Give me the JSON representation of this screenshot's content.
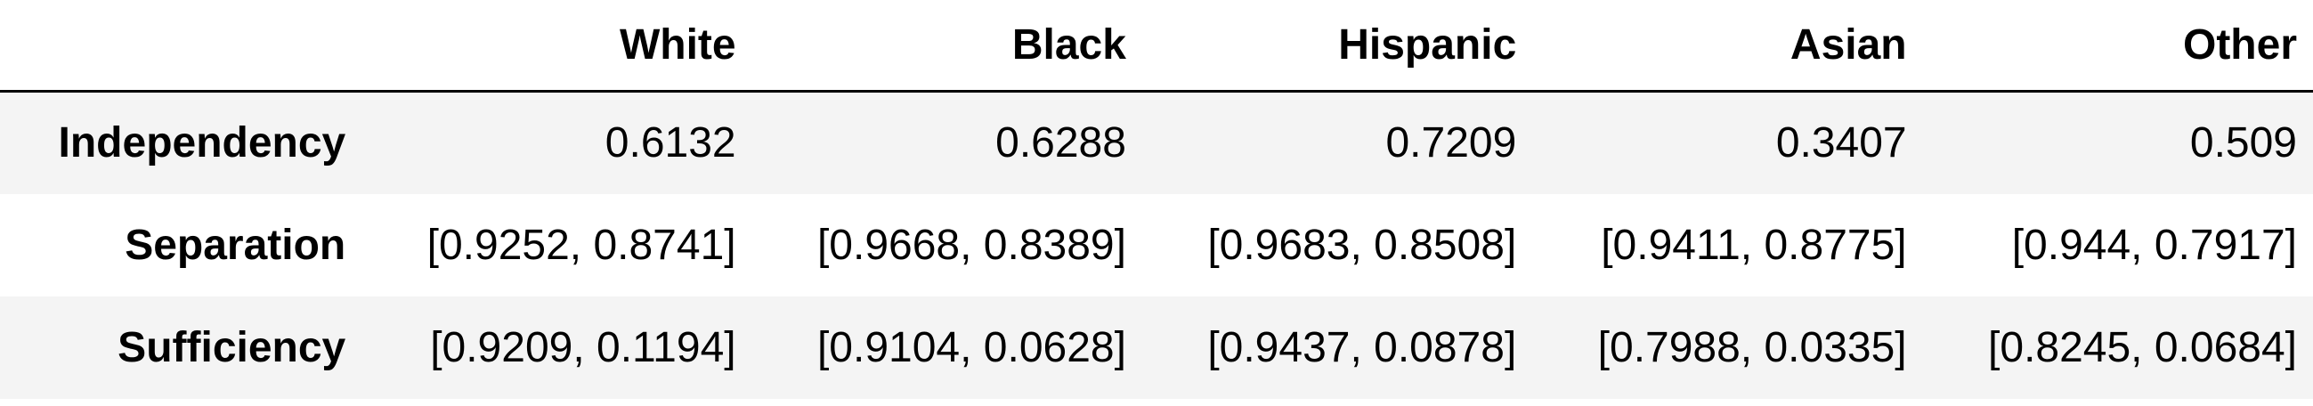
{
  "table": {
    "corner": "",
    "columns": [
      "White",
      "Black",
      "Hispanic",
      "Asian",
      "Other"
    ],
    "rows": [
      {
        "label": "Independency",
        "cells": [
          "0.6132",
          "0.6288",
          "0.7209",
          "0.3407",
          "0.509"
        ]
      },
      {
        "label": "Separation",
        "cells": [
          "[0.9252, 0.8741]",
          "[0.9668, 0.8389]",
          "[0.9683, 0.8508]",
          "[0.9411, 0.8775]",
          "[0.944, 0.7917]"
        ]
      },
      {
        "label": "Sufficiency",
        "cells": [
          "[0.9209, 0.1194]",
          "[0.9104, 0.0628]",
          "[0.9437, 0.0878]",
          "[0.7988, 0.0335]",
          "[0.8245, 0.0684]"
        ]
      }
    ]
  }
}
